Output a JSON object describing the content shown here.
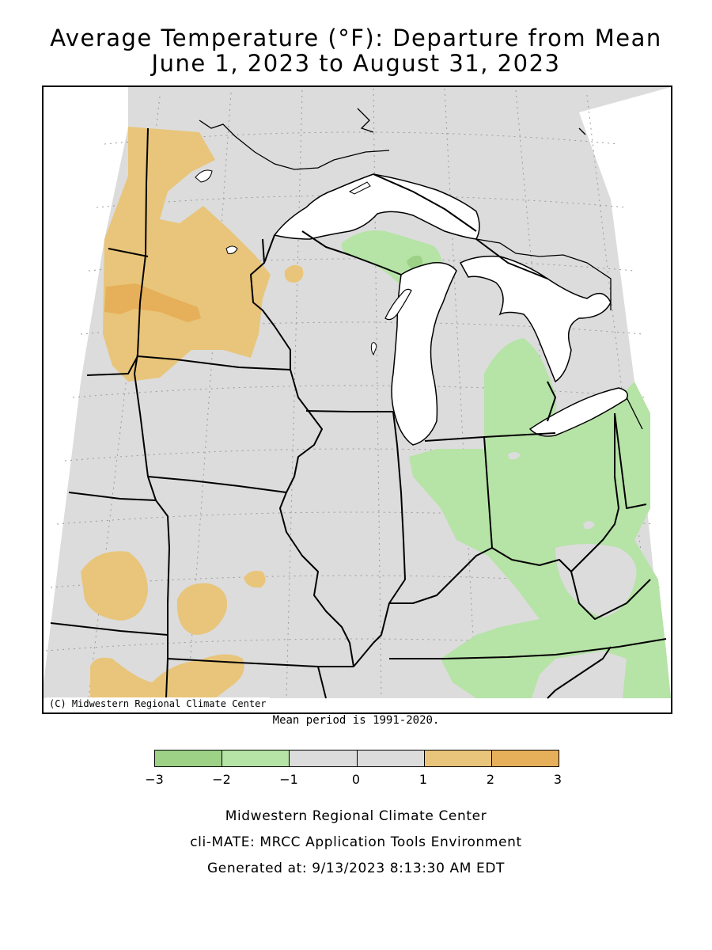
{
  "title_line1": "Average Temperature (°F): Departure from Mean",
  "title_line2": "June 1, 2023 to August 31, 2023",
  "copyright": "(C) Midwestern Regional Climate Center",
  "mean_period": "Mean period is 1991-2020.",
  "legend": {
    "bins": [
      {
        "range": [
          -3,
          -2
        ],
        "color": "#9cd186"
      },
      {
        "range": [
          -2,
          -1
        ],
        "color": "#b6e3a6"
      },
      {
        "range": [
          -1,
          0
        ],
        "color": "#dcdcdc"
      },
      {
        "range": [
          0,
          1
        ],
        "color": "#dcdcdc"
      },
      {
        "range": [
          1,
          2
        ],
        "color": "#e8c57a"
      },
      {
        "range": [
          2,
          3
        ],
        "color": "#e6af5a"
      }
    ],
    "ticks": [
      "−3",
      "−2",
      "−1",
      "0",
      "1",
      "2",
      "3"
    ]
  },
  "colors": {
    "near_normal": "#dcdcdc",
    "warm_1_2": "#e8c57a",
    "warm_2_3": "#e6af5a",
    "cool_1_2": "#b6e3a6",
    "cool_2_3": "#9cd186",
    "water": "#ffffff",
    "borders": "#000000"
  },
  "footer": {
    "line1": "Midwestern Regional Climate Center",
    "line2": "cli-MATE: MRCC Application Tools Environment",
    "line3": "Generated at: 9/13/2023 8:13:30 AM EDT"
  }
}
